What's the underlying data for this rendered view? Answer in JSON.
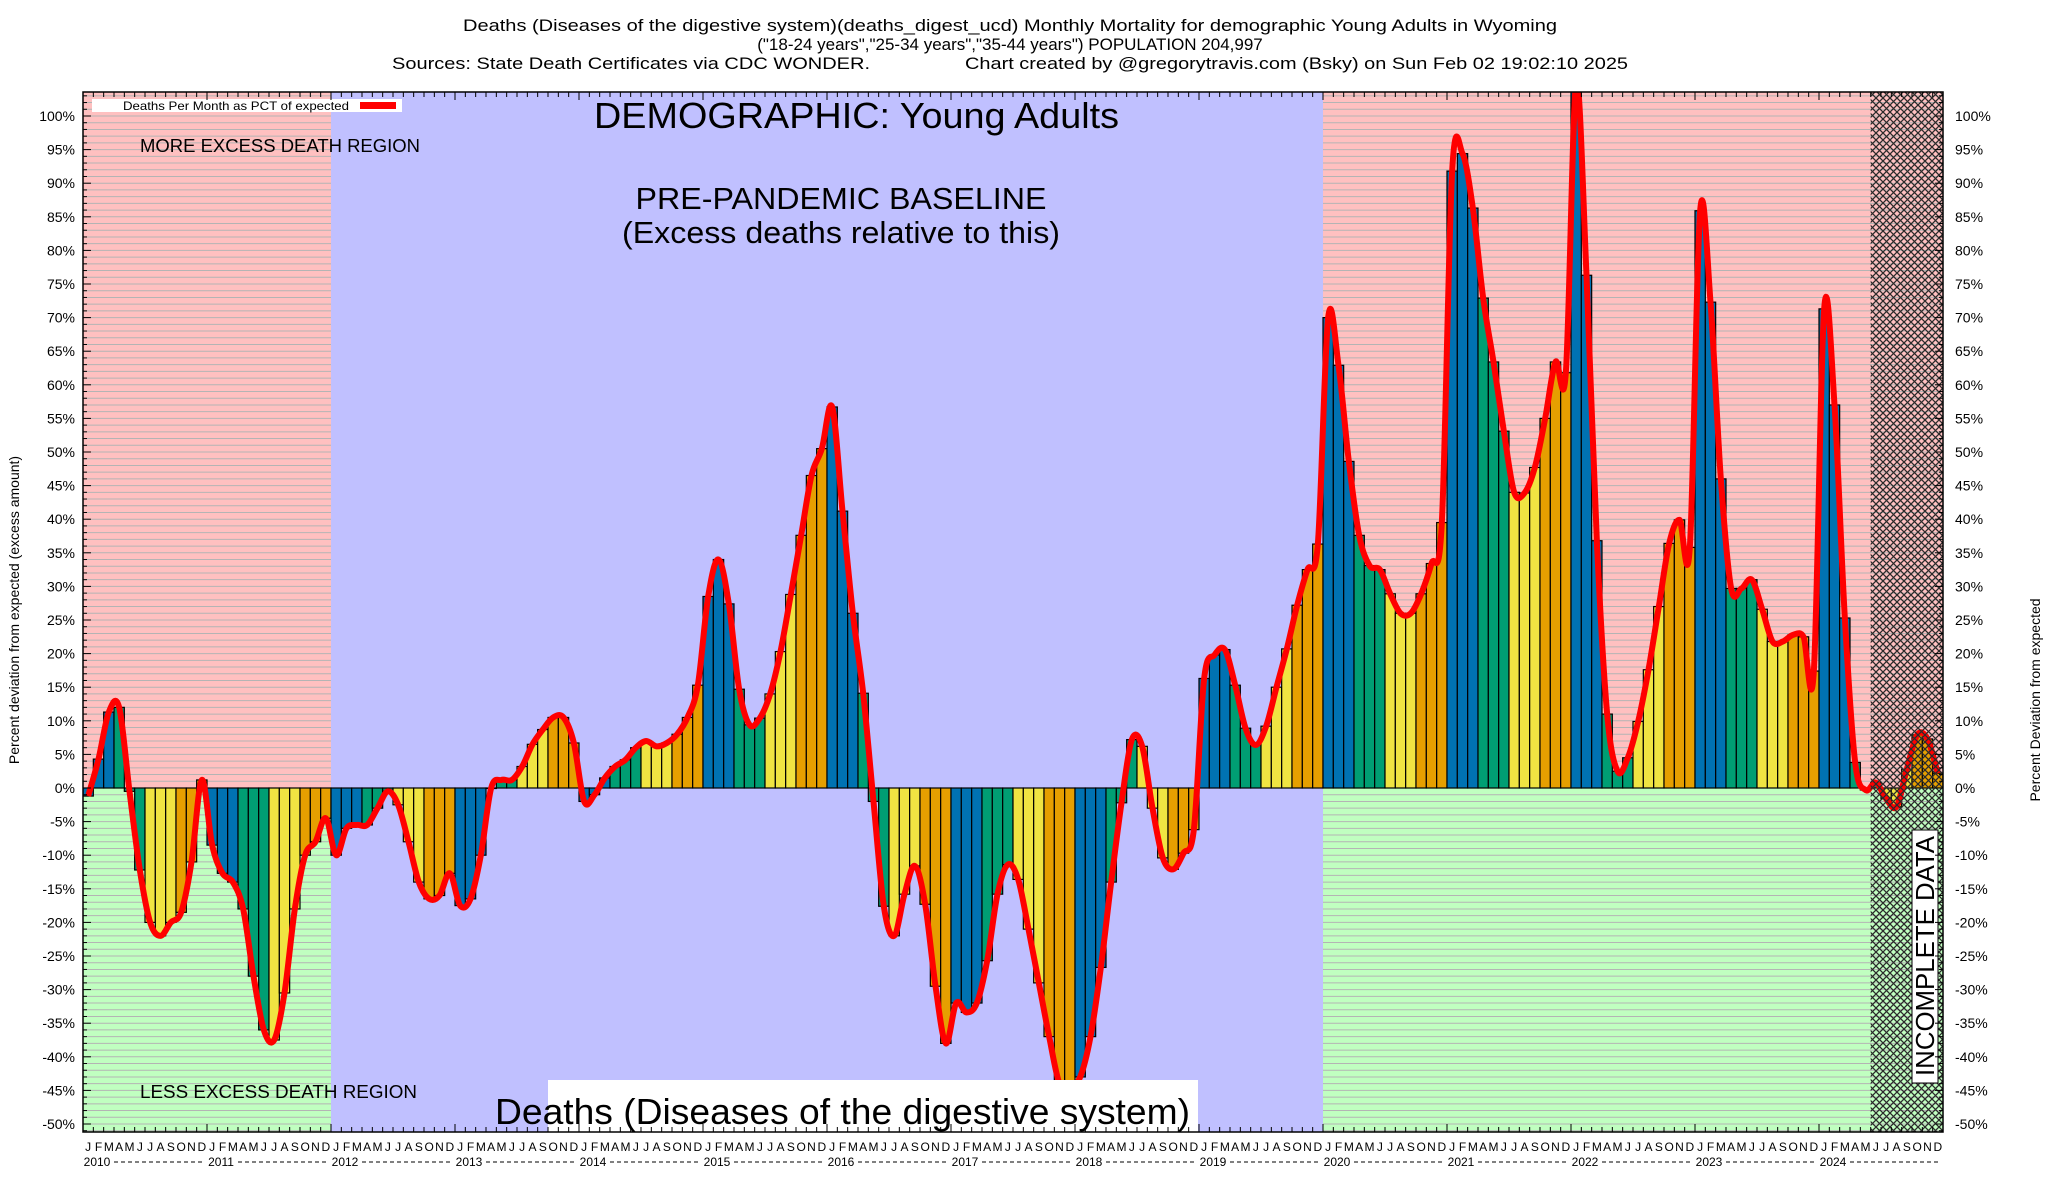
{
  "header": {
    "title_line1": "Deaths (Diseases of the digestive system)(deaths_digest_ucd) Monthly Mortality for demographic Young Adults in Wyoming",
    "title_line2": "(\"18-24 years\",\"25-34 years\",\"35-44 years\") POPULATION 204,997",
    "sources": "Sources: State Death Certificates via CDC WONDER.",
    "credit": "Chart created by @gregorytravis.com (Bsky) on Sun Feb 02 19:02:10 2025"
  },
  "annotations": {
    "demographic": "DEMOGRAPHIC: Young Adults",
    "baseline_line1": "PRE-PANDEMIC BASELINE",
    "baseline_line2": "(Excess deaths relative to this)",
    "more_region": "MORE EXCESS DEATH REGION",
    "less_region": "LESS EXCESS DEATH REGION",
    "cause_box": "Deaths (Diseases of the digestive system)",
    "incomplete": "INCOMPLETE DATA"
  },
  "chart_data": {
    "type": "bar",
    "x_start": "2010-01",
    "x_end": "2024-12",
    "ylabel": "Percent deviation from expected (excess amount)",
    "ylabel_right": "Percent Deviation from expected",
    "ylim": [
      -51,
      103.5
    ],
    "yticks": [
      "-50%",
      "-45%",
      "-40%",
      "-35%",
      "-30%",
      "-25%",
      "-20%",
      "-15%",
      "-10%",
      "-5%",
      "0%",
      "5%",
      "10%",
      "15%",
      "20%",
      "25%",
      "30%",
      "35%",
      "40%",
      "45%",
      "50%",
      "55%",
      "60%",
      "65%",
      "70%",
      "75%",
      "80%",
      "85%",
      "90%",
      "95%",
      "100%"
    ],
    "ytick_values": [
      -50,
      -45,
      -40,
      -35,
      -30,
      -25,
      -20,
      -15,
      -10,
      -5,
      0,
      5,
      10,
      15,
      20,
      25,
      30,
      35,
      40,
      45,
      50,
      55,
      60,
      65,
      70,
      75,
      80,
      85,
      90,
      95,
      100
    ],
    "month_letters": [
      "J",
      "F",
      "M",
      "A",
      "M",
      "J",
      "J",
      "A",
      "S",
      "O",
      "N",
      "D"
    ],
    "years": [
      "2010",
      "2011",
      "2012",
      "2013",
      "2014",
      "2015",
      "2016",
      "2017",
      "2018",
      "2019",
      "2020",
      "2021",
      "2022",
      "2023",
      "2024"
    ],
    "legend": {
      "label": "Deaths Per Month as PCT of expected",
      "position": "top-left"
    },
    "grid": true,
    "series": [
      {
        "name": "Deaths Per Month as PCT of expected",
        "values": [
          -1.2,
          4.3,
          11.3,
          12,
          -0.5,
          -12.2,
          -20,
          -22,
          -20,
          -18.5,
          -11,
          1.2,
          -8.5,
          -12.7,
          -14,
          -18,
          -28,
          -36,
          -37.5,
          -30.5,
          -18,
          -10,
          -8,
          -4.5,
          -10,
          -6,
          -5.5,
          -5.5,
          -3,
          -0.5,
          -2.5,
          -8,
          -14,
          -16.5,
          -16,
          -12.7,
          -17.5,
          -16.5,
          -10,
          0,
          1.2,
          1.2,
          3.2,
          6.5,
          8.7,
          10.5,
          10.5,
          6.7,
          -2,
          -1,
          1.5,
          3.2,
          4.2,
          6,
          7,
          6.2,
          6.7,
          8,
          10.5,
          15.3,
          28.5,
          34,
          27.4,
          14.7,
          9.4,
          10.4,
          14,
          20.3,
          28.8,
          37.6,
          46.5,
          50.5,
          56.7,
          41.2,
          26,
          14.1,
          -2,
          -17.6,
          -22,
          -15.8,
          -11.6,
          -17.3,
          -29.5,
          -38,
          -32,
          -33.4,
          -32,
          -25.7,
          -15.8,
          -11.4,
          -13.6,
          -21,
          -29,
          -37,
          -44,
          -44.5,
          -43,
          -37,
          -26.7,
          -14,
          -2.2,
          7.2,
          6.2,
          -3,
          -10.4,
          -12.1,
          -9.7,
          -6.2,
          16.3,
          19.8,
          20.6,
          15.3,
          8.9,
          6.4,
          9.2,
          15,
          20.7,
          27.2,
          32.5,
          36.3,
          70,
          62.9,
          48.6,
          37.6,
          33.1,
          32.5,
          28.9,
          26,
          26,
          28.9,
          33.4,
          39.5,
          91.8,
          94.4,
          86.3,
          72.9,
          63.4,
          53.1,
          44,
          43.9,
          47.7,
          55,
          63.4,
          61.8,
          105,
          76.3,
          36.8,
          11,
          2.5,
          4.5,
          9.9,
          17.6,
          27,
          36.4,
          39.9,
          35.8,
          85.9,
          72.3,
          46,
          29.7,
          29.7,
          31,
          26.6,
          21.8,
          21.8,
          22.8,
          22.5,
          17.4,
          71.3,
          57,
          25.3,
          3.8,
          -0.3,
          0.8,
          -1.6,
          -2.8,
          2.8,
          7.9,
          7.3,
          2.2
        ]
      }
    ],
    "regions": {
      "baseline": [
        "2012-01",
        "2019-12"
      ],
      "incomplete": [
        "2024-06",
        "2024-12"
      ]
    },
    "colors": {
      "q1_bar": "#0072b2",
      "q2_bar": "#009e73",
      "q3_bar": "#f0e442",
      "q4_bar": "#e69f00",
      "line": "#ff0000",
      "more_region": "#ffc0c0",
      "less_region": "#c0ffc0",
      "baseline_region": "#c0c0ff"
    }
  }
}
